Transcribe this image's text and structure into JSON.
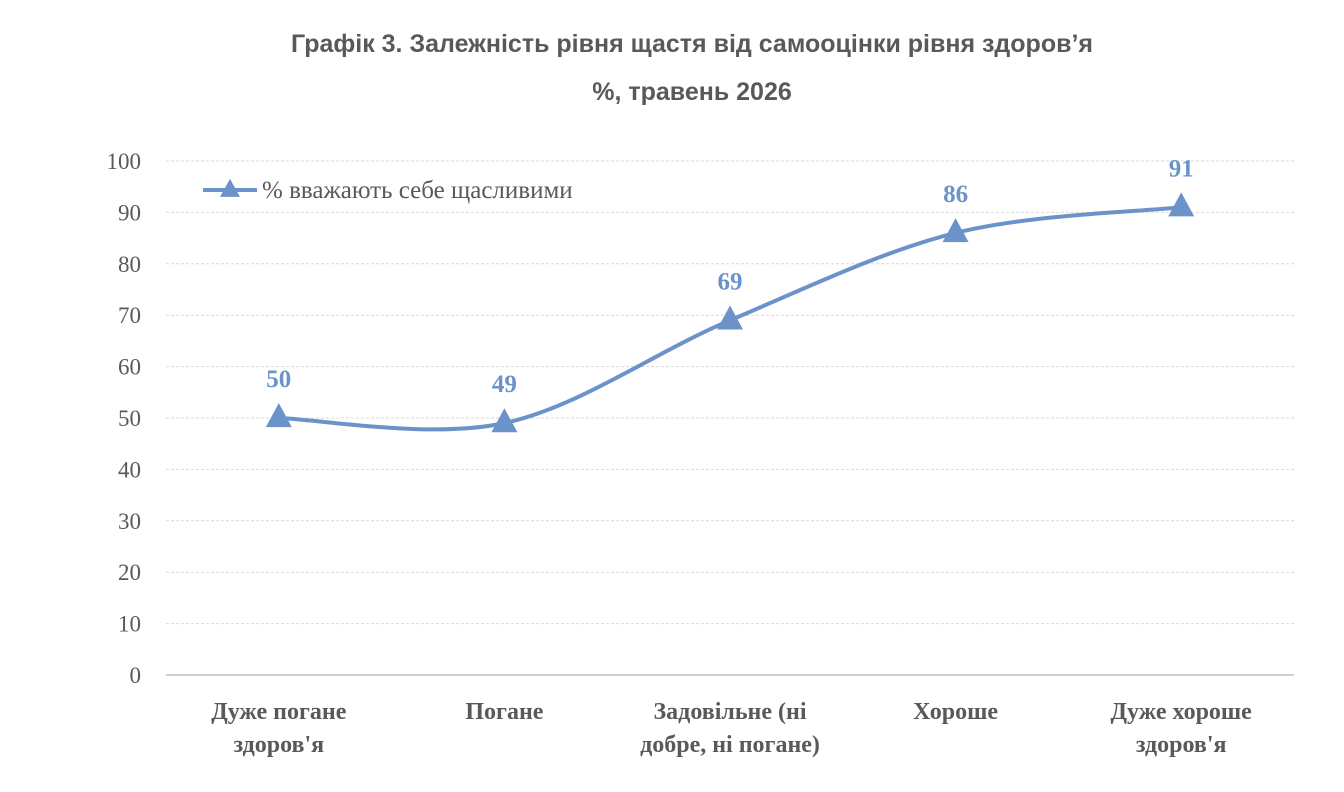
{
  "title_line1": "Графік 3. Залежність рівня щастя від самооцінки рівня здоров’я",
  "title_line2": "%, травень 2026",
  "chart_data": {
    "type": "line",
    "title": "Графік 3. Залежність рівня щастя від самооцінки рівня здоров’я %, травень 2026",
    "categories": [
      [
        "Дуже погане",
        "здоров'я"
      ],
      [
        "Погане"
      ],
      [
        "Задовільне (ні",
        "добре, ні погане)"
      ],
      [
        "Хороше"
      ],
      [
        "Дуже хороше",
        "здоров'я"
      ]
    ],
    "series": [
      {
        "name": "% вважають себе щасливими",
        "values": [
          50,
          49,
          69,
          86,
          91
        ],
        "color": "#6b93c9",
        "marker": "triangle"
      }
    ],
    "ylim": [
      0,
      100
    ],
    "yticks": [
      0,
      10,
      20,
      30,
      40,
      50,
      60,
      70,
      80,
      90,
      100
    ],
    "grid": true,
    "legend": "top-left",
    "data_labels": true,
    "smooth": true
  }
}
